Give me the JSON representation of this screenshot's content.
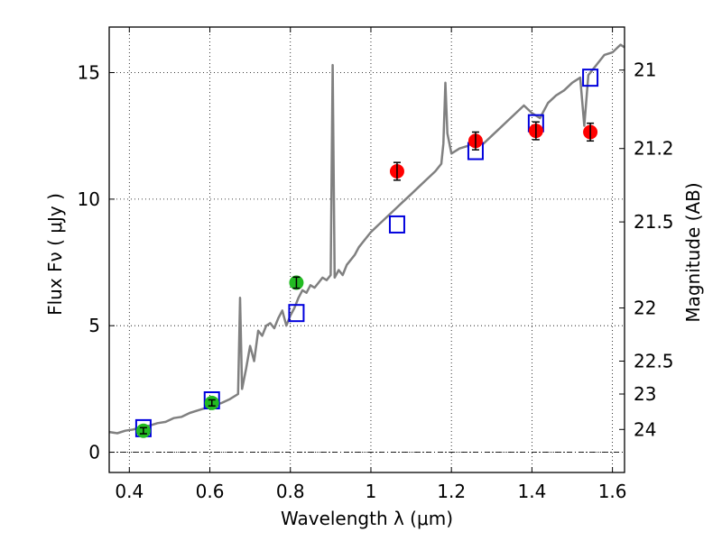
{
  "chart_data": {
    "type": "scatter",
    "xlabel": "Wavelength  λ (μm)",
    "ylabel": "Flux  Fν  ( μJy )",
    "y2label": "Magnitude (AB)",
    "xlim": [
      0.35,
      1.63
    ],
    "ylim": [
      -0.8,
      16.8
    ],
    "xticks": [
      0.4,
      0.6,
      0.8,
      1.0,
      1.2,
      1.4,
      1.6
    ],
    "xtick_labels": [
      "0.4",
      "0.6",
      "0.8",
      "1",
      "1.2",
      "1.4",
      "1.6"
    ],
    "yticks": [
      0,
      5,
      10,
      15
    ],
    "ytick_labels": [
      "0",
      "5",
      "10",
      "15"
    ],
    "y2ticks": [
      {
        "label": "21",
        "flux": 15.1
      },
      {
        "label": "21.2",
        "flux": 12.0
      },
      {
        "label": "21.5",
        "flux": 9.1
      },
      {
        "label": "22",
        "flux": 5.7
      },
      {
        "label": "22.5",
        "flux": 3.6
      },
      {
        "label": "23",
        "flux": 2.3
      },
      {
        "label": "24",
        "flux": 0.9
      }
    ],
    "grid": true,
    "colors": {
      "spectrum": "#808080",
      "green_points": "#22bb22",
      "red_points": "#ff0000",
      "model_squares": "#0000dd",
      "error_bars": "#000000"
    },
    "series": [
      {
        "name": "spectrum",
        "kind": "line",
        "points": [
          [
            0.35,
            0.8
          ],
          [
            0.37,
            0.75
          ],
          [
            0.39,
            0.85
          ],
          [
            0.41,
            0.9
          ],
          [
            0.43,
            1.0
          ],
          [
            0.45,
            1.05
          ],
          [
            0.47,
            1.15
          ],
          [
            0.49,
            1.2
          ],
          [
            0.51,
            1.35
          ],
          [
            0.53,
            1.4
          ],
          [
            0.55,
            1.55
          ],
          [
            0.57,
            1.65
          ],
          [
            0.59,
            1.75
          ],
          [
            0.61,
            1.85
          ],
          [
            0.63,
            1.95
          ],
          [
            0.65,
            2.1
          ],
          [
            0.67,
            2.3
          ],
          [
            0.675,
            6.1
          ],
          [
            0.68,
            2.5
          ],
          [
            0.69,
            3.3
          ],
          [
            0.7,
            4.2
          ],
          [
            0.71,
            3.6
          ],
          [
            0.72,
            4.8
          ],
          [
            0.73,
            4.6
          ],
          [
            0.74,
            5.0
          ],
          [
            0.75,
            5.1
          ],
          [
            0.76,
            4.9
          ],
          [
            0.77,
            5.3
          ],
          [
            0.78,
            5.6
          ],
          [
            0.79,
            5.0
          ],
          [
            0.8,
            5.4
          ],
          [
            0.81,
            5.7
          ],
          [
            0.82,
            6.1
          ],
          [
            0.83,
            6.4
          ],
          [
            0.84,
            6.3
          ],
          [
            0.85,
            6.6
          ],
          [
            0.86,
            6.5
          ],
          [
            0.87,
            6.7
          ],
          [
            0.88,
            6.9
          ],
          [
            0.89,
            6.8
          ],
          [
            0.9,
            7.0
          ],
          [
            0.905,
            15.3
          ],
          [
            0.91,
            6.9
          ],
          [
            0.92,
            7.2
          ],
          [
            0.93,
            7.0
          ],
          [
            0.94,
            7.4
          ],
          [
            0.95,
            7.6
          ],
          [
            0.96,
            7.8
          ],
          [
            0.97,
            8.1
          ],
          [
            0.98,
            8.3
          ],
          [
            0.99,
            8.5
          ],
          [
            1.0,
            8.7
          ],
          [
            1.02,
            9.0
          ],
          [
            1.04,
            9.3
          ],
          [
            1.06,
            9.6
          ],
          [
            1.08,
            9.9
          ],
          [
            1.1,
            10.2
          ],
          [
            1.12,
            10.5
          ],
          [
            1.14,
            10.8
          ],
          [
            1.16,
            11.1
          ],
          [
            1.175,
            11.4
          ],
          [
            1.18,
            12.2
          ],
          [
            1.185,
            14.6
          ],
          [
            1.19,
            12.6
          ],
          [
            1.2,
            11.8
          ],
          [
            1.22,
            12.0
          ],
          [
            1.24,
            12.1
          ],
          [
            1.26,
            12.3
          ],
          [
            1.28,
            12.2
          ],
          [
            1.3,
            12.5
          ],
          [
            1.32,
            12.8
          ],
          [
            1.34,
            13.1
          ],
          [
            1.36,
            13.4
          ],
          [
            1.38,
            13.7
          ],
          [
            1.4,
            13.4
          ],
          [
            1.42,
            13.2
          ],
          [
            1.44,
            13.8
          ],
          [
            1.46,
            14.1
          ],
          [
            1.48,
            14.3
          ],
          [
            1.5,
            14.6
          ],
          [
            1.52,
            14.8
          ],
          [
            1.53,
            12.9
          ],
          [
            1.54,
            14.9
          ],
          [
            1.56,
            15.3
          ],
          [
            1.58,
            15.7
          ],
          [
            1.6,
            15.8
          ],
          [
            1.62,
            16.1
          ],
          [
            1.63,
            16.0
          ]
        ]
      },
      {
        "name": "photometry (green)",
        "kind": "points",
        "points": [
          {
            "x": 0.435,
            "y": 0.85,
            "err": 0.12
          },
          {
            "x": 0.605,
            "y": 1.95,
            "err": 0.12
          },
          {
            "x": 0.815,
            "y": 6.7,
            "err": 0.22
          }
        ]
      },
      {
        "name": "photometry (red)",
        "kind": "points",
        "points": [
          {
            "x": 1.065,
            "y": 11.1,
            "err": 0.35
          },
          {
            "x": 1.26,
            "y": 12.3,
            "err": 0.35
          },
          {
            "x": 1.41,
            "y": 12.7,
            "err": 0.35
          },
          {
            "x": 1.545,
            "y": 12.65,
            "err": 0.35
          }
        ]
      },
      {
        "name": "model fluxes",
        "kind": "squares",
        "points": [
          {
            "x": 0.435,
            "y": 0.95
          },
          {
            "x": 0.605,
            "y": 2.05
          },
          {
            "x": 0.815,
            "y": 5.5
          },
          {
            "x": 1.065,
            "y": 9.0
          },
          {
            "x": 1.26,
            "y": 11.9
          },
          {
            "x": 1.41,
            "y": 13.0
          },
          {
            "x": 1.545,
            "y": 14.8
          }
        ]
      }
    ]
  }
}
